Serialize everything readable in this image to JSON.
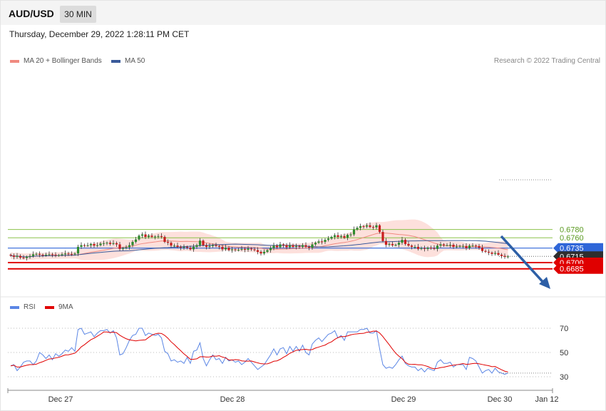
{
  "header": {
    "symbol": "AUD/USD",
    "timeframe": "30 MIN",
    "timestamp": "Thursday, December 29, 2022 1:28:11 PM CET"
  },
  "legend": {
    "ma20_label": "MA 20 + Bollinger Bands",
    "ma50_label": "MA 50",
    "credit": "Research © 2022 Trading Central"
  },
  "rsi_legend": {
    "rsi_label": "RSI",
    "ma_label": "9MA"
  },
  "colors": {
    "bull": "#2e8b2e",
    "bear": "#c81e1e",
    "band_fill": "#fde0dc",
    "ma20": "#f08a80",
    "ma50": "#3a5a9a",
    "resistance": "#8bc34a",
    "support": "#e00000",
    "pivot": "#2f66d8",
    "current": "#2e2e2e",
    "arrow": "#2d5fa6",
    "rsi": "#5b86e5",
    "rsi_ma": "#e00000"
  },
  "chart_data": {
    "type": "line",
    "title": "AUD/USD 30 MIN",
    "price_levels": [
      {
        "label": "0.6780",
        "value": 0.678,
        "kind": "resistance"
      },
      {
        "label": "0.6760",
        "value": 0.676,
        "kind": "resistance"
      },
      {
        "label": "0.6735",
        "value": 0.6735,
        "kind": "pivot"
      },
      {
        "label": "0.6715",
        "value": 0.6715,
        "kind": "current"
      },
      {
        "label": "0.6700",
        "value": 0.67,
        "kind": "support"
      },
      {
        "label": "0.6685",
        "value": 0.6685,
        "kind": "support"
      }
    ],
    "x_ticks": [
      "Dec 27",
      "Dec 28",
      "Dec 29",
      "Dec 30",
      "Jan 12"
    ],
    "price_range": [
      0.667,
      0.68
    ],
    "close": [
      0.6717,
      0.6714,
      0.6716,
      0.6712,
      0.6711,
      0.6714,
      0.6716,
      0.672,
      0.6721,
      0.6719,
      0.6718,
      0.6719,
      0.672,
      0.6719,
      0.6718,
      0.6718,
      0.672,
      0.6722,
      0.6721,
      0.672,
      0.6722,
      0.6738,
      0.6742,
      0.6741,
      0.6742,
      0.6745,
      0.6741,
      0.6742,
      0.6746,
      0.6747,
      0.6748,
      0.6745,
      0.6747,
      0.6744,
      0.6733,
      0.6735,
      0.6737,
      0.6742,
      0.675,
      0.6756,
      0.6765,
      0.6768,
      0.6762,
      0.6765,
      0.6762,
      0.6763,
      0.6764,
      0.6762,
      0.675,
      0.6748,
      0.6741,
      0.6741,
      0.6738,
      0.6736,
      0.6738,
      0.6736,
      0.6732,
      0.6738,
      0.6742,
      0.6753,
      0.6742,
      0.6738,
      0.674,
      0.6742,
      0.674,
      0.6738,
      0.6732,
      0.6736,
      0.673,
      0.6732,
      0.6731,
      0.6731,
      0.6733,
      0.6731,
      0.6734,
      0.6732,
      0.673,
      0.6726,
      0.6722,
      0.6726,
      0.673,
      0.6735,
      0.6741,
      0.6737,
      0.6744,
      0.6742,
      0.6737,
      0.6742,
      0.6738,
      0.674,
      0.6738,
      0.6742,
      0.6738,
      0.6736,
      0.6744,
      0.6748,
      0.6751,
      0.675,
      0.6755,
      0.6758,
      0.6762,
      0.6766,
      0.6762,
      0.6764,
      0.676,
      0.6767,
      0.6768,
      0.678,
      0.6784,
      0.6788,
      0.6787,
      0.679,
      0.6786,
      0.6785,
      0.679,
      0.6774,
      0.6752,
      0.6743,
      0.6745,
      0.6742,
      0.6743,
      0.6748,
      0.6755,
      0.6745,
      0.6741,
      0.6738,
      0.6738,
      0.6733,
      0.6735,
      0.6733,
      0.6736,
      0.6735,
      0.6733,
      0.6741,
      0.6744,
      0.6742,
      0.6742,
      0.6743,
      0.6738,
      0.6739,
      0.674,
      0.674,
      0.6735,
      0.6741,
      0.6741,
      0.674,
      0.6736,
      0.6728,
      0.6726,
      0.6724,
      0.6721,
      0.6723,
      0.6719,
      0.6716,
      0.6714,
      0.6715
    ],
    "rsi": [
      39,
      40,
      35,
      38,
      42,
      43,
      43,
      40,
      43,
      50,
      48,
      45,
      48,
      44,
      49,
      47,
      49,
      52,
      51,
      54,
      51,
      69,
      70,
      65,
      66,
      67,
      63,
      66,
      68,
      68,
      69,
      66,
      68,
      62,
      48,
      49,
      54,
      60,
      64,
      65,
      70,
      70,
      64,
      66,
      65,
      64,
      65,
      62,
      51,
      49,
      43,
      44,
      42,
      43,
      41,
      46,
      41,
      51,
      52,
      58,
      45,
      39,
      44,
      48,
      44,
      45,
      41,
      46,
      43,
      44,
      42,
      43,
      40,
      42,
      45,
      42,
      39,
      36,
      38,
      40,
      44,
      48,
      53,
      48,
      53,
      54,
      49,
      55,
      51,
      55,
      51,
      56,
      50,
      48,
      57,
      60,
      62,
      59,
      62,
      65,
      66,
      68,
      62,
      64,
      60,
      67,
      67,
      67,
      67,
      69,
      69,
      70,
      66,
      66,
      68,
      53,
      40,
      37,
      38,
      37,
      40,
      44,
      47,
      41,
      39,
      38,
      38,
      35,
      37,
      34,
      37,
      36,
      35,
      42,
      44,
      41,
      41,
      42,
      38,
      40,
      40,
      40,
      36,
      46,
      45,
      43,
      38,
      33,
      35,
      36,
      33,
      37,
      34,
      33,
      32,
      33
    ]
  },
  "rsi_axis": [
    "70",
    "50",
    "30"
  ]
}
